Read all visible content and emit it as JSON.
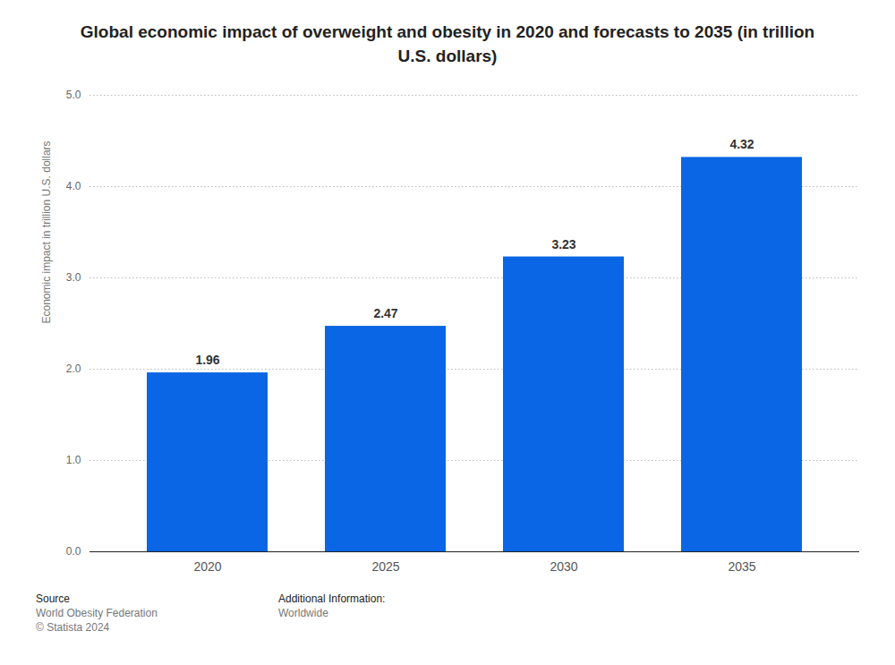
{
  "chart_data": {
    "type": "bar",
    "title": "Global economic impact of overweight and obesity in 2020 and forecasts to 2035 (in trillion U.S. dollars)",
    "y_label": "Economic impact in trillion U.S. dollars",
    "categories": [
      "2020",
      "2025",
      "2030",
      "2035"
    ],
    "values": [
      1.96,
      2.47,
      3.23,
      4.32
    ],
    "color": "#0a66e4",
    "ylim": [
      0,
      5
    ],
    "yticks": [
      0,
      1,
      2,
      3,
      4,
      5
    ],
    "grid": true,
    "data_labels": true,
    "source_label": "Source",
    "source": "World Obesity Federation",
    "copyright": "© Statista 2024",
    "additional_info_label": "Additional Information:",
    "additional_info": "Worldwide"
  }
}
